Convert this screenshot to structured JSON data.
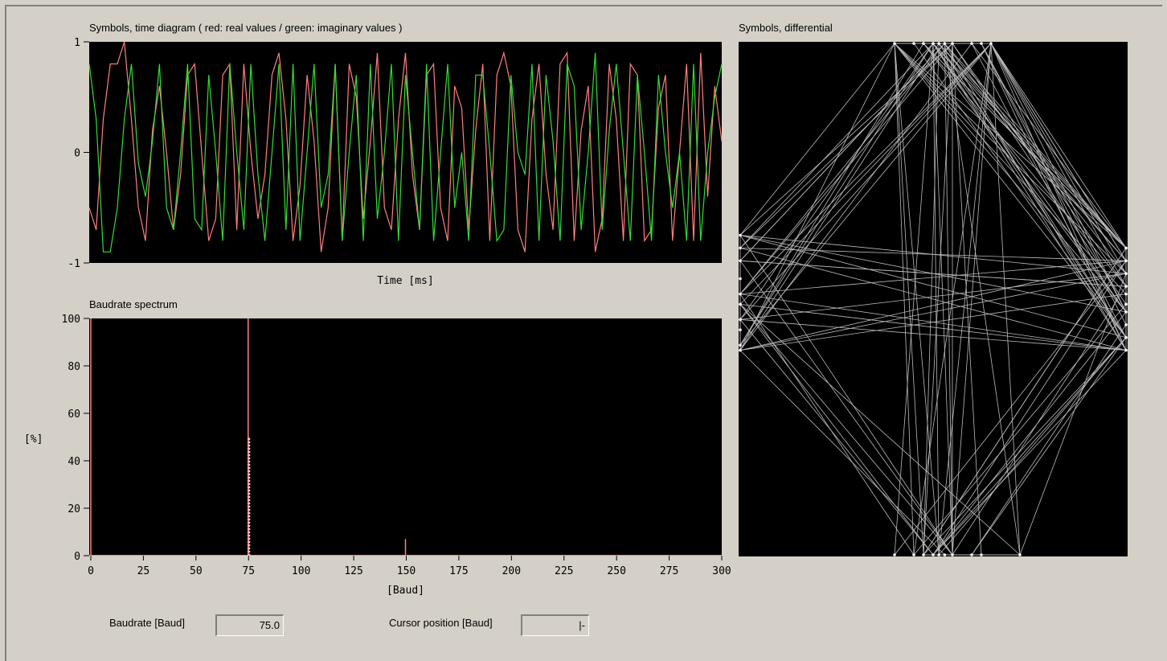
{
  "time_panel": {
    "title": "Symbols, time diagram   ( red: real values  / green: imaginary values )",
    "xlabel": "Time  [ms]",
    "yticks": [
      "1",
      "0",
      "-1"
    ]
  },
  "spectrum_panel": {
    "title": "Baudrate spectrum",
    "xlabel": "[Baud]",
    "ylabel": "[%]",
    "xticks": [
      "0",
      "25",
      "50",
      "75",
      "100",
      "125",
      "150",
      "175",
      "200",
      "225",
      "250",
      "275",
      "300"
    ],
    "yticks": [
      "100",
      "80",
      "60",
      "40",
      "20",
      "0"
    ]
  },
  "diff_panel": {
    "title": "Symbols, differential"
  },
  "fields": {
    "baudrate_label": "Baudrate [Baud]",
    "baudrate_value": "75.0",
    "cursor_label": "Cursor position [Baud]",
    "cursor_value": "|-"
  },
  "colors": {
    "real": "#ff8080",
    "imag": "#33dd33",
    "diff": "#bbbbbb",
    "background": "#000000"
  },
  "chart_data": [
    {
      "type": "line",
      "title": "Symbols, time diagram   ( red: real values  / green: imaginary values )",
      "xlabel": "Time  [ms]",
      "ylim": [
        -1,
        1
      ],
      "series": [
        {
          "name": "red: real values",
          "values": [
            -0.5,
            -0.7,
            0.3,
            0.8,
            0.8,
            1.0,
            0.3,
            -0.5,
            -0.8,
            0.2,
            0.6,
            0.0,
            -0.7,
            -0.2,
            0.7,
            0.8,
            0.0,
            -0.8,
            -0.6,
            0.7,
            0.8,
            -0.7,
            0.8,
            0.0,
            -0.6,
            -0.2,
            0.7,
            0.9,
            0.3,
            -0.8,
            -0.3,
            0.7,
            0.1,
            -0.9,
            -0.5,
            0.8,
            -0.8,
            0.8,
            0.5,
            -0.6,
            0.1,
            0.9,
            -0.5,
            -0.7,
            0.3,
            0.9,
            -0.2,
            -0.7,
            0.7,
            0.8,
            -0.5,
            -0.8,
            0.6,
            0.4,
            -0.7,
            0.2,
            0.8,
            -0.8,
            0.7,
            0.9,
            0.6,
            -0.7,
            -0.9,
            0.3,
            0.8,
            -0.2,
            -0.7,
            0.8,
            0.9,
            -0.8,
            0.2,
            0.6,
            -0.9,
            -0.6,
            0.8,
            0.3,
            -0.8,
            0.8,
            0.7,
            -0.8,
            -0.7,
            0.4,
            0.7,
            -0.8,
            0.0,
            0.8,
            -0.8,
            0.9,
            -0.4,
            0.6,
            0.1
          ]
        },
        {
          "name": "green: imaginary values",
          "values": [
            0.8,
            0.3,
            -0.9,
            -0.9,
            -0.5,
            0.3,
            0.8,
            -0.1,
            -0.4,
            0.1,
            0.8,
            -0.5,
            -0.7,
            0.0,
            0.8,
            -0.6,
            -0.7,
            0.7,
            0.0,
            -0.8,
            0.8,
            0.0,
            -0.7,
            0.8,
            -0.2,
            -0.8,
            0.0,
            0.8,
            -0.7,
            0.8,
            -0.8,
            0.0,
            0.8,
            -0.5,
            -0.2,
            0.8,
            -0.8,
            0.0,
            0.7,
            -0.8,
            0.8,
            -0.6,
            0.0,
            0.8,
            -0.8,
            0.7,
            0.0,
            -0.7,
            0.8,
            -0.8,
            0.0,
            0.8,
            -0.5,
            0.0,
            -0.8,
            0.7,
            0.7,
            0.0,
            -0.8,
            -0.7,
            0.7,
            0.0,
            -0.2,
            0.8,
            -0.8,
            0.7,
            0.1,
            -0.8,
            0.8,
            0.6,
            -0.7,
            0.0,
            0.9,
            -0.7,
            0.2,
            0.8,
            0.0,
            -0.8,
            0.7,
            0.0,
            -0.8,
            0.7,
            0.0,
            -0.5,
            0.0,
            -0.8,
            0.8,
            -0.8,
            0.0,
            0.5,
            0.8
          ]
        }
      ]
    },
    {
      "type": "bar",
      "title": "Baudrate spectrum",
      "xlabel": "[Baud]",
      "ylabel": "[%]",
      "xlim": [
        0,
        300
      ],
      "ylim": [
        0,
        100
      ],
      "peaks": [
        {
          "x": 0,
          "value": 100
        },
        {
          "x": 75,
          "value": 100
        },
        {
          "x": 75,
          "value": 50
        },
        {
          "x": 150,
          "value": 7
        }
      ]
    },
    {
      "type": "scatter",
      "title": "Symbols, differential",
      "note_points_xlim": [
        -1,
        1
      ],
      "points": [
        [
          -0.2,
          1
        ],
        [
          -0.1,
          1
        ],
        [
          -0.05,
          1
        ],
        [
          0.0,
          1
        ],
        [
          0.03,
          1
        ],
        [
          0.06,
          1
        ],
        [
          0.1,
          1
        ],
        [
          0.2,
          1
        ],
        [
          0.25,
          1
        ],
        [
          0.3,
          1
        ],
        [
          1,
          0.1
        ],
        [
          1,
          0.05
        ],
        [
          1,
          0.02
        ],
        [
          1,
          -0.02
        ],
        [
          1,
          -0.05
        ],
        [
          1,
          -0.1
        ],
        [
          1,
          -0.15
        ],
        [
          1,
          0.15
        ],
        [
          1,
          -0.2
        ],
        [
          1,
          0.2
        ],
        [
          -0.2,
          -1
        ],
        [
          -0.1,
          -1
        ],
        [
          -0.05,
          -1
        ],
        [
          0.0,
          -1
        ],
        [
          0.03,
          -1
        ],
        [
          0.06,
          -1
        ],
        [
          0.1,
          -1
        ],
        [
          0.2,
          -1
        ],
        [
          0.25,
          -1
        ],
        [
          0.45,
          -1
        ],
        [
          -1,
          0.25
        ],
        [
          -1,
          0.15
        ],
        [
          -1,
          0.08
        ],
        [
          -1,
          0.02
        ],
        [
          -1,
          -0.02
        ],
        [
          -1,
          -0.08
        ],
        [
          -1,
          -0.12
        ],
        [
          -1,
          -0.18
        ],
        [
          -1,
          -0.2
        ],
        [
          -1,
          0.2
        ]
      ]
    }
  ]
}
